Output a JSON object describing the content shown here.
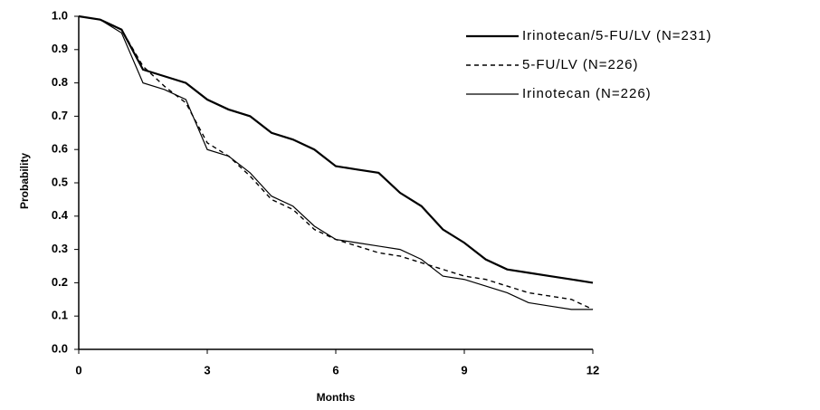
{
  "chart_data": {
    "type": "line",
    "x_label": "Months",
    "y_label": "Probability",
    "x": [
      0,
      0.5,
      1,
      1.5,
      2,
      2.5,
      3,
      3.5,
      4,
      4.5,
      5,
      5.5,
      6,
      6.5,
      7,
      7.5,
      8,
      8.5,
      9,
      9.5,
      10,
      10.5,
      11,
      11.5,
      12
    ],
    "series": [
      {
        "name": "Irinotecan/5-FU/LV (N=231)",
        "color": "#000000",
        "dash": false,
        "line_width": 2.2,
        "values": [
          1.0,
          0.99,
          0.96,
          0.84,
          0.82,
          0.8,
          0.75,
          0.72,
          0.7,
          0.65,
          0.63,
          0.6,
          0.55,
          0.54,
          0.53,
          0.47,
          0.43,
          0.36,
          0.32,
          0.27,
          0.24,
          0.23,
          0.22,
          0.21,
          0.2
        ]
      },
      {
        "name": "5-FU/LV (N=226)",
        "color": "#000000",
        "dash": true,
        "line_width": 1.4,
        "values": [
          1.0,
          0.99,
          0.96,
          0.85,
          0.79,
          0.74,
          0.62,
          0.58,
          0.52,
          0.45,
          0.42,
          0.36,
          0.33,
          0.31,
          0.29,
          0.28,
          0.26,
          0.24,
          0.22,
          0.21,
          0.19,
          0.17,
          0.16,
          0.15,
          0.12
        ]
      },
      {
        "name": "Irinotecan (N=226)",
        "color": "#000000",
        "dash": false,
        "line_width": 1.2,
        "values": [
          1.0,
          0.99,
          0.95,
          0.8,
          0.78,
          0.75,
          0.6,
          0.58,
          0.53,
          0.46,
          0.43,
          0.37,
          0.33,
          0.32,
          0.31,
          0.3,
          0.27,
          0.22,
          0.21,
          0.19,
          0.17,
          0.14,
          0.13,
          0.12,
          0.12
        ]
      }
    ],
    "xlim": [
      0,
      12
    ],
    "xticks": [
      0,
      3,
      6,
      9,
      12
    ],
    "ylim": [
      0,
      1
    ],
    "yticks": [
      {
        "value": 0,
        "label": "0.0"
      },
      0.1,
      0.2,
      0.3,
      0.4,
      0.5,
      0.6,
      0.7,
      0.8,
      0.9,
      {
        "value": 1,
        "label": "1.0"
      }
    ],
    "grid": false,
    "legend": "top-right"
  }
}
